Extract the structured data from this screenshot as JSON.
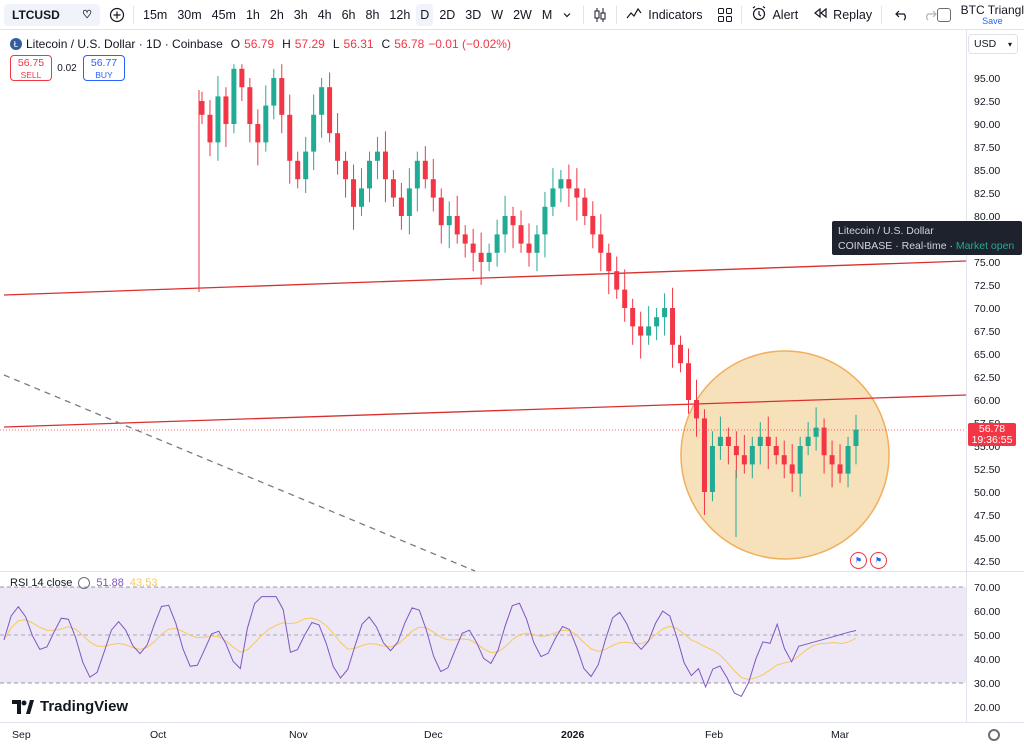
{
  "toolbar": {
    "symbol": "LTCUSD",
    "intervals": [
      "15m",
      "30m",
      "45m",
      "1h",
      "2h",
      "3h",
      "4h",
      "6h",
      "8h",
      "12h",
      "D",
      "2D",
      "3D",
      "W",
      "2W",
      "M"
    ],
    "active_interval": "D",
    "indicators_label": "Indicators",
    "alert_label": "Alert",
    "replay_label": "Replay",
    "layout_name": "BTC Triangl",
    "save_label": "Save",
    "icons": [
      "heart-icon",
      "plus-circle-icon",
      "chevron-down-icon",
      "candle-style-icon",
      "indicators-icon",
      "templates-icon",
      "alert-icon",
      "replay-icon",
      "undo-icon",
      "redo-icon"
    ]
  },
  "legend": {
    "title": "Litecoin / U.S. Dollar · 1D · Coinbase",
    "o_label": "O",
    "o_value": "56.79",
    "h_label": "H",
    "h_value": "57.29",
    "l_label": "L",
    "l_value": "56.31",
    "c_label": "C",
    "c_value": "56.78",
    "change": "−0.01 (−0.02%)"
  },
  "trade": {
    "sell_price": "56.75",
    "sell_label": "SELL",
    "spread": "0.02",
    "buy_price": "56.77",
    "buy_label": "BUY"
  },
  "price_axis": {
    "currency": "USD",
    "labels": [
      "95.00",
      "92.50",
      "90.00",
      "87.50",
      "85.00",
      "82.50",
      "80.00",
      "77.50",
      "75.00",
      "72.50",
      "70.00",
      "67.50",
      "65.00",
      "62.50",
      "60.00",
      "57.50",
      "55.00",
      "52.50",
      "50.00",
      "47.50",
      "45.00",
      "42.50"
    ],
    "last_price": "56.78",
    "countdown": "19:36:55"
  },
  "tooltip": {
    "line1": "Litecoin / U.S. Dollar",
    "exchange": "COINBASE",
    "realtime": "Real-time",
    "status": "Market open"
  },
  "rsi": {
    "label": "RSI 14 close",
    "value": "51.88",
    "ma_value": "43.53",
    "axis_labels": [
      "70.00",
      "60.00",
      "50.00",
      "40.00",
      "30.00",
      "20.00"
    ],
    "upper_band": 70,
    "lower_band": 30,
    "middle_band": 50
  },
  "time_axis": {
    "labels": [
      "Sep",
      "Oct",
      "Nov",
      "Dec",
      "2026",
      "Feb",
      "Mar"
    ]
  },
  "brand": "TradingView",
  "colors": {
    "up": "#22ab94",
    "down": "#f23645",
    "trendline": "#d9302e",
    "circle_fill": "#f6dcb0",
    "circle_stroke": "#f0a040",
    "rsi_line": "#7e57c2",
    "rsi_ma": "#f7c95d",
    "rsi_band": "#ede7f6"
  },
  "chart_data": {
    "type": "candlestick",
    "symbol": "LTCUSD",
    "timeframe": "1D",
    "ylim": [
      41,
      97
    ],
    "candles_estimated_close": [
      91,
      88,
      93,
      90,
      96,
      94,
      90,
      88,
      92,
      95,
      91,
      86,
      84,
      87,
      91,
      94,
      89,
      86,
      84,
      81,
      83,
      86,
      87,
      84,
      82,
      80,
      83,
      86,
      84,
      82,
      79,
      80,
      78,
      77,
      76,
      75,
      76,
      78,
      80,
      79,
      77,
      76,
      78,
      81,
      83,
      84,
      83,
      82,
      80,
      78,
      76,
      74,
      72,
      70,
      68,
      67,
      68,
      69,
      70,
      66,
      64,
      60,
      58,
      50,
      55,
      56,
      55,
      54,
      53,
      55,
      56,
      55,
      54,
      53,
      52,
      55,
      56,
      57,
      54,
      53,
      52,
      55,
      56.78
    ],
    "annotations": [
      "upper trendline",
      "lower trendline",
      "dashed descending trendline",
      "highlight circle"
    ]
  }
}
